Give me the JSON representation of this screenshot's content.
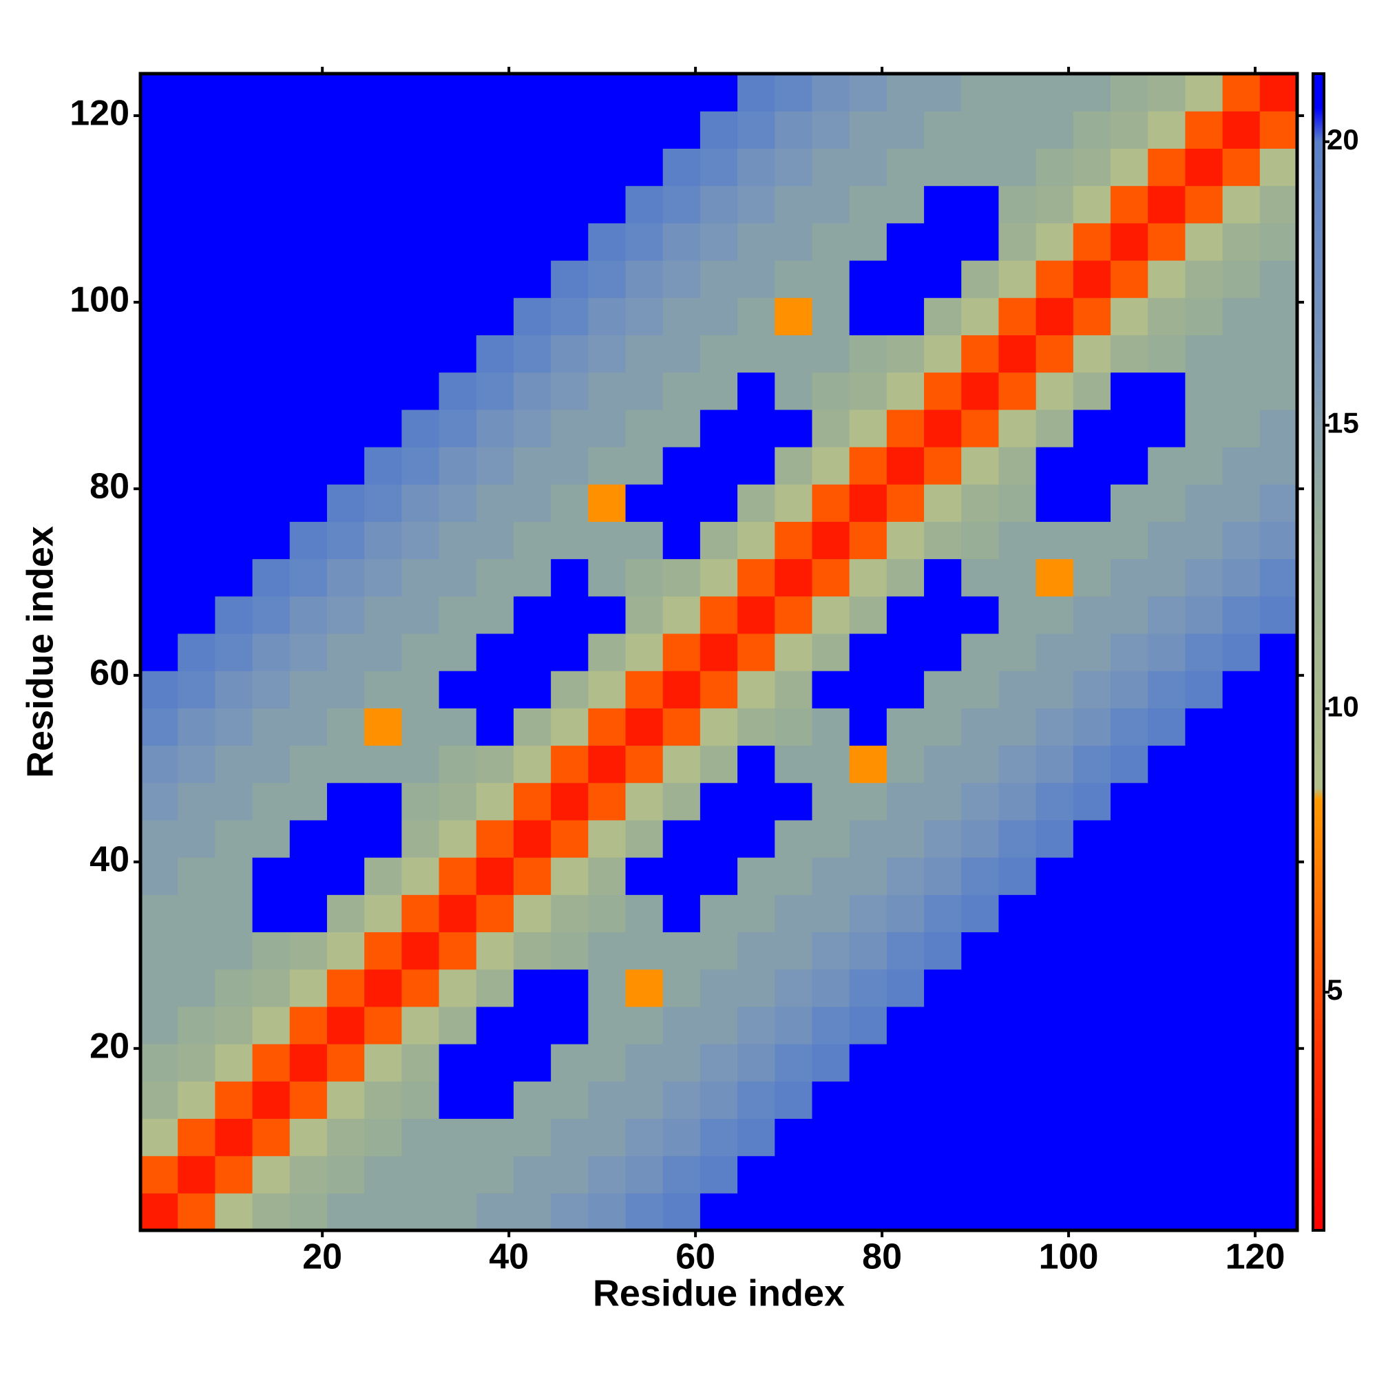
{
  "chart_data": {
    "type": "heatmap",
    "xlabel": "Residue index",
    "ylabel": "Residue index",
    "x": [
      2.5,
      6.5,
      10.5,
      14.5,
      18.5,
      22.5,
      26.5,
      30.5,
      34.5,
      38.5,
      42.5,
      46.5,
      50.5,
      54.5,
      58.5,
      62.5,
      66.5,
      70.5,
      74.5,
      78.5,
      82.5,
      86.5,
      90.5,
      94.5,
      98.5,
      102.5,
      106.5,
      110.5,
      114.5,
      118.5,
      122.5
    ],
    "y": [
      2.5,
      6.5,
      10.5,
      14.5,
      18.5,
      22.5,
      26.5,
      30.5,
      34.5,
      38.5,
      42.5,
      46.5,
      50.5,
      54.5,
      58.5,
      62.5,
      66.5,
      70.5,
      74.5,
      78.5,
      82.5,
      86.5,
      90.5,
      94.5,
      98.5,
      102.5,
      106.5,
      110.5,
      114.5,
      118.5,
      122.5
    ],
    "xlim": [
      0.5,
      124.5
    ],
    "ylim": [
      0.5,
      124.5
    ],
    "xticks": [
      20,
      40,
      60,
      80,
      100,
      120
    ],
    "yticks": [
      20,
      40,
      60,
      80,
      100,
      120
    ],
    "clim": [
      0.8,
      21.2
    ],
    "cticks": [
      5,
      10,
      15,
      20
    ],
    "colorscale": [
      [
        0.8,
        "#ff0000"
      ],
      [
        4,
        "#ff3300"
      ],
      [
        8.4,
        "#ff9900"
      ],
      [
        8.6,
        "#b3bf8a"
      ],
      [
        13,
        "#98ae96"
      ],
      [
        16,
        "#7a96b8"
      ],
      [
        20,
        "#5b80c8"
      ],
      [
        20.6,
        "#0000ff"
      ],
      [
        21.2,
        "#0000ff"
      ]
    ],
    "z": [
      [
        2.5,
        5.5,
        9,
        12,
        13,
        14,
        14,
        14,
        14,
        15,
        15,
        16,
        17,
        19,
        20,
        22,
        22,
        22,
        22,
        22,
        22,
        22,
        22,
        22,
        22,
        22,
        22,
        22,
        22,
        22,
        22
      ],
      [
        5.5,
        2.5,
        5.5,
        9,
        12,
        13,
        14,
        14,
        14,
        14,
        15,
        15,
        16,
        17,
        19,
        20,
        22,
        22,
        22,
        22,
        22,
        22,
        22,
        22,
        22,
        22,
        22,
        22,
        22,
        22,
        22
      ],
      [
        9,
        5.5,
        2.5,
        5.5,
        9,
        12,
        13,
        14,
        14,
        14,
        14,
        15,
        15,
        16,
        17,
        19,
        20,
        22,
        22,
        22,
        22,
        22,
        22,
        22,
        22,
        22,
        22,
        22,
        22,
        22,
        22
      ],
      [
        12,
        9,
        5.5,
        2.5,
        5.5,
        9,
        12,
        13,
        22,
        22,
        14,
        14,
        15,
        15,
        16,
        17,
        19,
        20,
        22,
        22,
        22,
        22,
        22,
        22,
        22,
        22,
        22,
        22,
        22,
        22,
        22
      ],
      [
        13,
        12,
        9,
        5.5,
        2.5,
        5.5,
        9,
        12,
        22,
        22,
        22,
        14,
        14,
        15,
        15,
        16,
        17,
        19,
        20,
        22,
        22,
        22,
        22,
        22,
        22,
        22,
        22,
        22,
        22,
        22,
        22
      ],
      [
        14,
        13,
        12,
        9,
        5.5,
        2.5,
        5.5,
        9,
        12,
        22,
        22,
        22,
        14,
        14,
        15,
        15,
        16,
        17,
        19,
        20,
        22,
        22,
        22,
        22,
        22,
        22,
        22,
        22,
        22,
        22,
        22
      ],
      [
        14,
        14,
        13,
        12,
        9,
        5.5,
        2.5,
        5.5,
        9,
        12,
        22,
        22,
        14,
        8,
        14,
        15,
        15,
        16,
        17,
        19,
        20,
        22,
        22,
        22,
        22,
        22,
        22,
        22,
        22,
        22,
        22
      ],
      [
        14,
        14,
        14,
        13,
        12,
        9,
        5.5,
        2.5,
        5.5,
        9,
        12,
        13,
        14,
        14,
        14,
        14,
        15,
        15,
        16,
        17,
        19,
        20,
        22,
        22,
        22,
        22,
        22,
        22,
        22,
        22,
        22
      ],
      [
        14,
        14,
        14,
        22,
        22,
        12,
        9,
        5.5,
        2.5,
        5.5,
        9,
        12,
        13,
        14,
        22,
        14,
        14,
        15,
        15,
        16,
        17,
        19,
        20,
        22,
        22,
        22,
        22,
        22,
        22,
        22,
        22
      ],
      [
        15,
        14,
        14,
        22,
        22,
        22,
        12,
        9,
        5.5,
        2.5,
        5.5,
        9,
        12,
        22,
        22,
        22,
        14,
        14,
        15,
        15,
        16,
        17,
        19,
        20,
        22,
        22,
        22,
        22,
        22,
        22,
        22
      ],
      [
        15,
        15,
        14,
        14,
        22,
        22,
        22,
        12,
        9,
        5.5,
        2.5,
        5.5,
        9,
        12,
        22,
        22,
        22,
        14,
        14,
        15,
        15,
        16,
        17,
        19,
        20,
        22,
        22,
        22,
        22,
        22,
        22
      ],
      [
        16,
        15,
        15,
        14,
        14,
        22,
        22,
        13,
        12,
        9,
        5.5,
        2.5,
        5.5,
        9,
        12,
        22,
        22,
        22,
        14,
        14,
        15,
        15,
        16,
        17,
        19,
        20,
        22,
        22,
        22,
        22,
        22
      ],
      [
        17,
        16,
        15,
        15,
        14,
        14,
        14,
        14,
        13,
        12,
        9,
        5.5,
        2.5,
        5.5,
        9,
        12,
        22,
        14,
        14,
        8,
        14,
        15,
        15,
        16,
        17,
        19,
        20,
        22,
        22,
        22,
        22
      ],
      [
        19,
        17,
        16,
        15,
        15,
        14,
        8,
        14,
        14,
        22,
        12,
        9,
        5.5,
        2.5,
        5.5,
        9,
        12,
        13,
        14,
        22,
        14,
        14,
        15,
        15,
        16,
        17,
        19,
        20,
        22,
        22,
        22
      ],
      [
        20,
        19,
        17,
        16,
        15,
        15,
        14,
        14,
        22,
        22,
        22,
        12,
        9,
        5.5,
        2.5,
        5.5,
        9,
        12,
        22,
        22,
        22,
        14,
        14,
        15,
        15,
        16,
        17,
        19,
        20,
        22,
        22
      ],
      [
        22,
        20,
        19,
        17,
        16,
        15,
        15,
        14,
        14,
        22,
        22,
        22,
        12,
        9,
        5.5,
        2.5,
        5.5,
        9,
        12,
        22,
        22,
        22,
        14,
        14,
        15,
        15,
        16,
        17,
        19,
        20,
        22
      ],
      [
        22,
        22,
        20,
        19,
        17,
        16,
        15,
        15,
        14,
        14,
        22,
        22,
        22,
        12,
        9,
        5.5,
        2.5,
        5.5,
        9,
        12,
        22,
        22,
        22,
        14,
        14,
        15,
        15,
        16,
        17,
        19,
        20
      ],
      [
        22,
        22,
        22,
        20,
        19,
        17,
        16,
        15,
        15,
        14,
        14,
        22,
        14,
        13,
        12,
        9,
        5.5,
        2.5,
        5.5,
        9,
        12,
        22,
        14,
        14,
        8,
        14,
        15,
        15,
        16,
        17,
        19
      ],
      [
        22,
        22,
        22,
        22,
        20,
        19,
        17,
        16,
        15,
        15,
        14,
        14,
        14,
        14,
        22,
        12,
        9,
        5.5,
        2.5,
        5.5,
        9,
        12,
        13,
        14,
        14,
        14,
        14,
        15,
        15,
        16,
        17
      ],
      [
        22,
        22,
        22,
        22,
        22,
        20,
        19,
        17,
        16,
        15,
        15,
        14,
        8,
        22,
        22,
        22,
        12,
        9,
        5.5,
        2.5,
        5.5,
        9,
        12,
        13,
        22,
        22,
        14,
        14,
        15,
        15,
        16
      ],
      [
        22,
        22,
        22,
        22,
        22,
        22,
        20,
        19,
        17,
        16,
        15,
        15,
        14,
        14,
        22,
        22,
        22,
        12,
        9,
        5.5,
        2.5,
        5.5,
        9,
        12,
        22,
        22,
        22,
        14,
        14,
        15,
        15
      ],
      [
        22,
        22,
        22,
        22,
        22,
        22,
        22,
        20,
        19,
        17,
        16,
        15,
        15,
        14,
        14,
        22,
        22,
        22,
        12,
        9,
        5.5,
        2.5,
        5.5,
        9,
        12,
        22,
        22,
        22,
        14,
        14,
        15
      ],
      [
        22,
        22,
        22,
        22,
        22,
        22,
        22,
        22,
        20,
        19,
        17,
        16,
        15,
        15,
        14,
        14,
        22,
        14,
        13,
        12,
        9,
        5.5,
        2.5,
        5.5,
        9,
        12,
        22,
        22,
        14,
        14,
        14
      ],
      [
        22,
        22,
        22,
        22,
        22,
        22,
        22,
        22,
        22,
        20,
        19,
        17,
        16,
        15,
        15,
        14,
        14,
        14,
        14,
        13,
        12,
        9,
        5.5,
        2.5,
        5.5,
        9,
        12,
        13,
        14,
        14,
        14
      ],
      [
        22,
        22,
        22,
        22,
        22,
        22,
        22,
        22,
        22,
        22,
        20,
        19,
        17,
        16,
        15,
        15,
        14,
        8,
        14,
        22,
        22,
        12,
        9,
        5.5,
        2.5,
        5.5,
        9,
        12,
        13,
        14,
        14
      ],
      [
        22,
        22,
        22,
        22,
        22,
        22,
        22,
        22,
        22,
        22,
        22,
        20,
        19,
        17,
        16,
        15,
        15,
        14,
        14,
        22,
        22,
        22,
        12,
        9,
        5.5,
        2.5,
        5.5,
        9,
        12,
        13,
        14
      ],
      [
        22,
        22,
        22,
        22,
        22,
        22,
        22,
        22,
        22,
        22,
        22,
        22,
        20,
        19,
        17,
        16,
        15,
        15,
        14,
        14,
        22,
        22,
        22,
        12,
        9,
        5.5,
        2.5,
        5.5,
        9,
        12,
        13
      ],
      [
        22,
        22,
        22,
        22,
        22,
        22,
        22,
        22,
        22,
        22,
        22,
        22,
        22,
        20,
        19,
        17,
        16,
        15,
        15,
        14,
        14,
        22,
        22,
        13,
        12,
        9,
        5.5,
        2.5,
        5.5,
        9,
        12
      ],
      [
        22,
        22,
        22,
        22,
        22,
        22,
        22,
        22,
        22,
        22,
        22,
        22,
        22,
        22,
        20,
        19,
        17,
        16,
        15,
        15,
        14,
        14,
        14,
        14,
        13,
        12,
        9,
        5.5,
        2.5,
        5.5,
        9
      ],
      [
        22,
        22,
        22,
        22,
        22,
        22,
        22,
        22,
        22,
        22,
        22,
        22,
        22,
        22,
        22,
        20,
        19,
        17,
        16,
        15,
        15,
        14,
        14,
        14,
        14,
        13,
        12,
        9,
        5.5,
        2.5,
        5.5
      ],
      [
        22,
        22,
        22,
        22,
        22,
        22,
        22,
        22,
        22,
        22,
        22,
        22,
        22,
        22,
        22,
        22,
        20,
        19,
        17,
        16,
        15,
        15,
        14,
        14,
        14,
        14,
        13,
        12,
        9,
        5.5,
        2.5
      ]
    ]
  }
}
